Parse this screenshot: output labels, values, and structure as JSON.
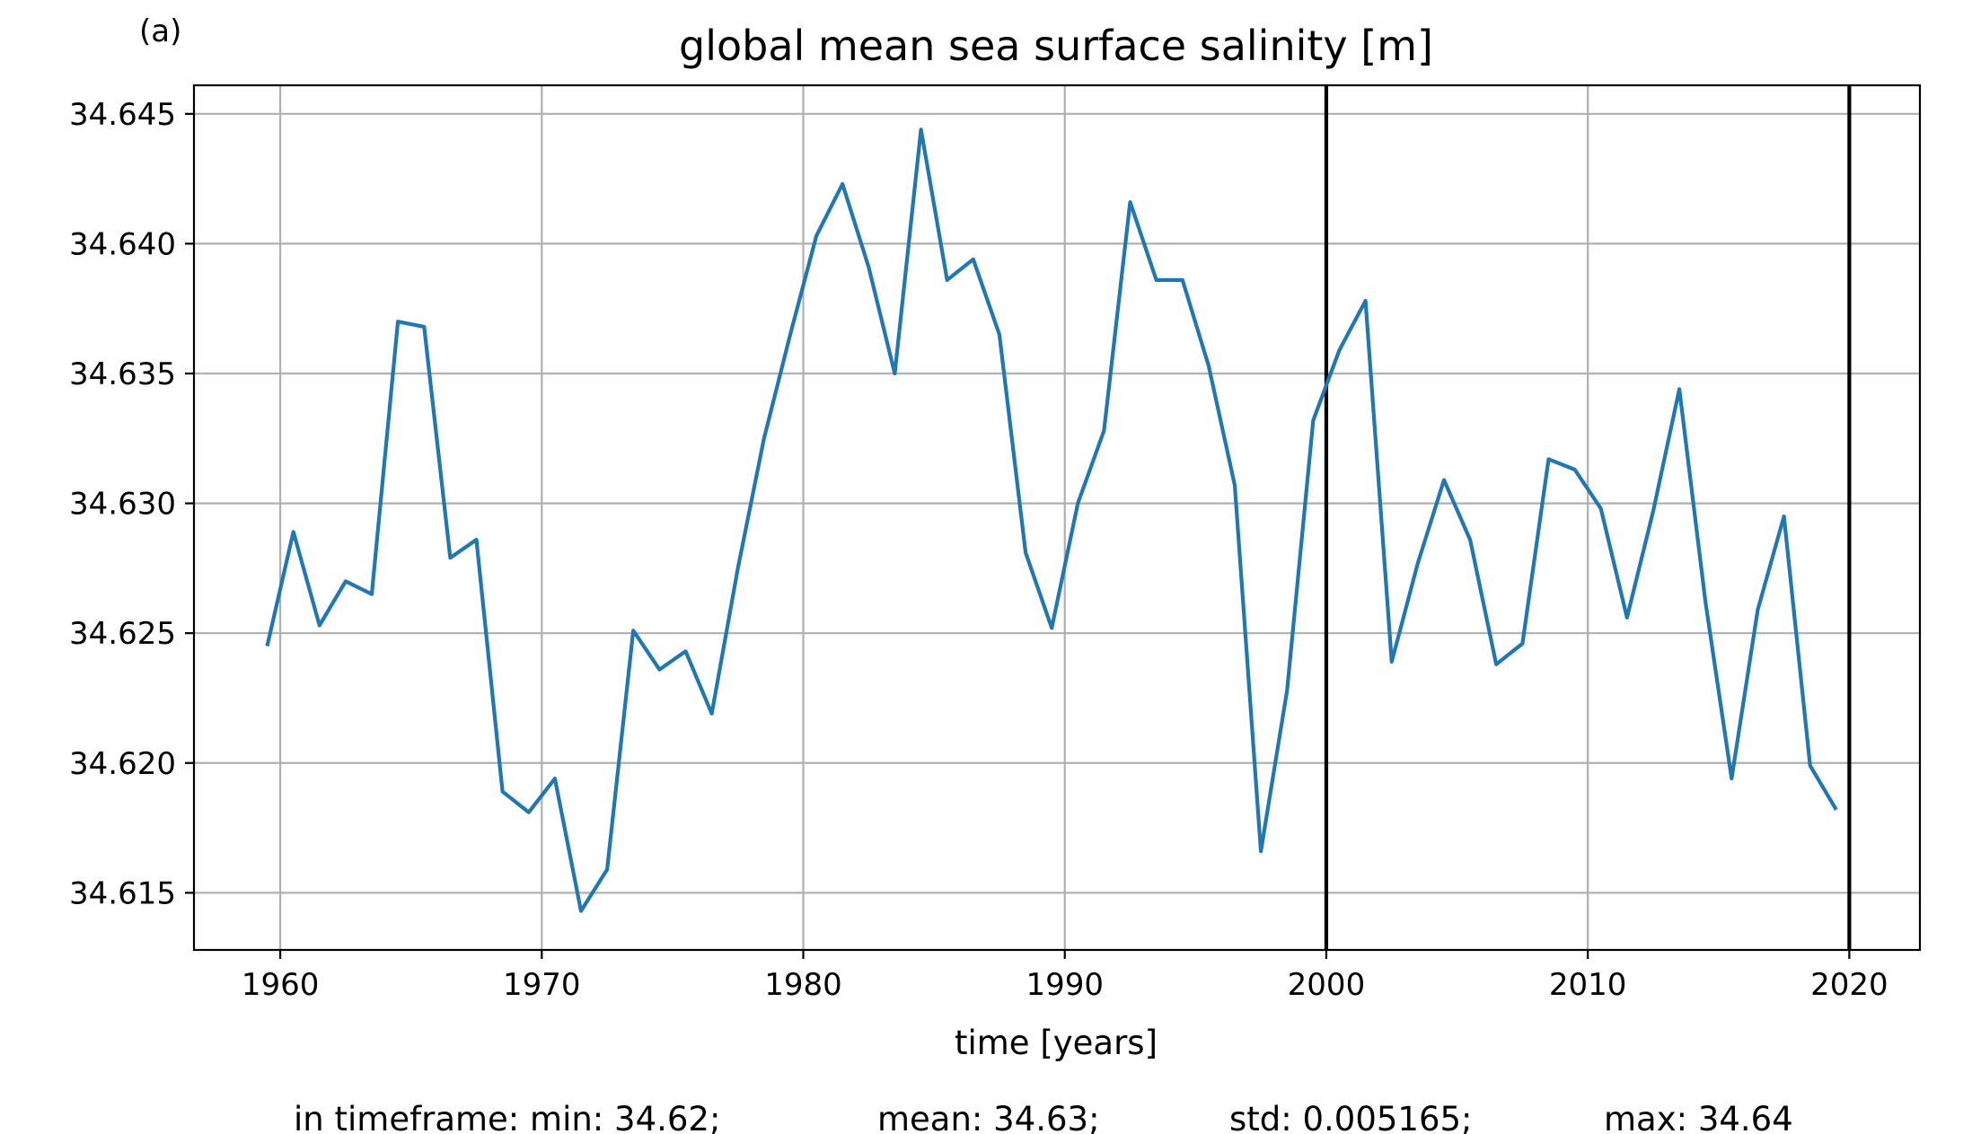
{
  "chart_data": {
    "type": "line",
    "panel_label": "(a)",
    "title": "global mean sea surface salinity [m]",
    "xlabel": "time [years]",
    "ylabel": "",
    "xlim": [
      1956.7,
      2022.7
    ],
    "ylim": [
      34.6128,
      34.6461
    ],
    "x_ticks": [
      1960,
      1970,
      1980,
      1990,
      2000,
      2010,
      2020
    ],
    "x_tick_labels": [
      "1960",
      "1970",
      "1980",
      "1990",
      "2000",
      "2010",
      "2020"
    ],
    "y_ticks": [
      34.615,
      34.62,
      34.625,
      34.63,
      34.635,
      34.64,
      34.645
    ],
    "y_tick_labels": [
      "34.615",
      "34.620",
      "34.625",
      "34.630",
      "34.635",
      "34.640",
      "34.645"
    ],
    "grid": true,
    "vertical_lines": [
      2000,
      2020
    ],
    "series_color": "#1f77b4",
    "vline_color": "#000000",
    "series": [
      {
        "x": [
          1959.5,
          1960.5,
          1961.5,
          1962.5,
          1963.5,
          1964.5,
          1965.5,
          1966.5,
          1967.5,
          1968.5,
          1969.5,
          1970.5,
          1971.5,
          1972.5,
          1973.5,
          1974.5,
          1975.5,
          1976.5,
          1977.5,
          1978.5,
          1979.5,
          1980.5,
          1981.5,
          1982.5,
          1983.5,
          1984.5,
          1985.5,
          1986.5,
          1987.5,
          1988.5,
          1989.5,
          1990.5,
          1991.5,
          1992.5,
          1993.5,
          1994.5,
          1995.5,
          1996.5,
          1997.5,
          1998.5,
          1999.5,
          2000.5,
          2001.5,
          2002.5,
          2003.5,
          2004.5,
          2005.5,
          2006.5,
          2007.5,
          2008.5,
          2009.5,
          2010.5,
          2011.5,
          2012.5,
          2013.5,
          2014.5,
          2015.5,
          2016.5,
          2017.5,
          2018.5,
          2019.5
        ],
        "values": [
          34.6245,
          34.6289,
          34.6253,
          34.627,
          34.6265,
          34.637,
          34.6368,
          34.6279,
          34.6286,
          34.6189,
          34.6181,
          34.6194,
          34.6143,
          34.6159,
          34.6251,
          34.6236,
          34.6243,
          34.6219,
          34.6275,
          34.6325,
          34.6365,
          34.6403,
          34.6423,
          34.6391,
          34.635,
          34.6444,
          34.6386,
          34.6394,
          34.6365,
          34.6281,
          34.6252,
          34.63,
          34.6328,
          34.6416,
          34.6386,
          34.6386,
          34.6353,
          34.6307,
          34.6166,
          34.6228,
          34.6332,
          34.6359,
          34.6378,
          34.6239,
          34.6277,
          34.6309,
          34.6286,
          34.6238,
          34.6246,
          34.6317,
          34.6313,
          34.6298,
          34.6256,
          34.6297,
          34.6344,
          34.6262,
          34.6194,
          34.6259,
          34.6295,
          34.6199,
          34.6182
        ]
      }
    ],
    "stats": {
      "min": "in timeframe: min: 34.62;",
      "mean": "mean: 34.63;",
      "std": "std: 0.005165;",
      "max": "max: 34.64"
    }
  }
}
